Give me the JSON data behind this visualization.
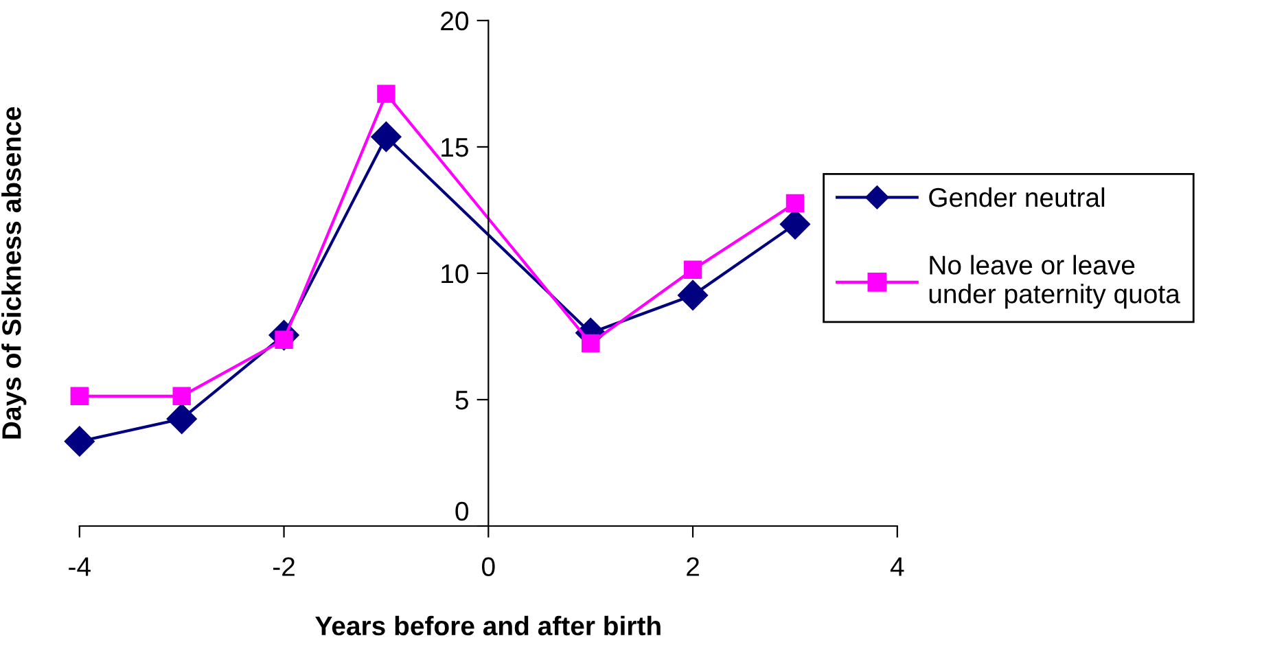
{
  "chart_data": {
    "type": "line",
    "xlabel": "Years before and after birth",
    "ylabel": "Days of Sickness absence",
    "x": [
      -4,
      -3,
      -2,
      -1,
      1,
      2,
      3
    ],
    "series": [
      {
        "name": "Gender neutral",
        "color": "#000080",
        "marker": "diamond",
        "values": [
          3.35,
          4.24,
          7.55,
          15.4,
          7.64,
          9.13,
          11.94
        ]
      },
      {
        "name": "No leave or leave\nunder paternity quota",
        "color": "#ff00ff",
        "marker": "square",
        "values": [
          5.14,
          5.14,
          7.37,
          17.1,
          7.23,
          10.14,
          12.77
        ]
      }
    ],
    "xlim": [
      -4,
      4
    ],
    "xticks": [
      -4,
      -2,
      0,
      2,
      4
    ],
    "ylim": [
      0,
      20
    ],
    "yticks": [
      0,
      5,
      10,
      15,
      20
    ],
    "grid": false,
    "legend": "right",
    "line_style": "solid"
  }
}
